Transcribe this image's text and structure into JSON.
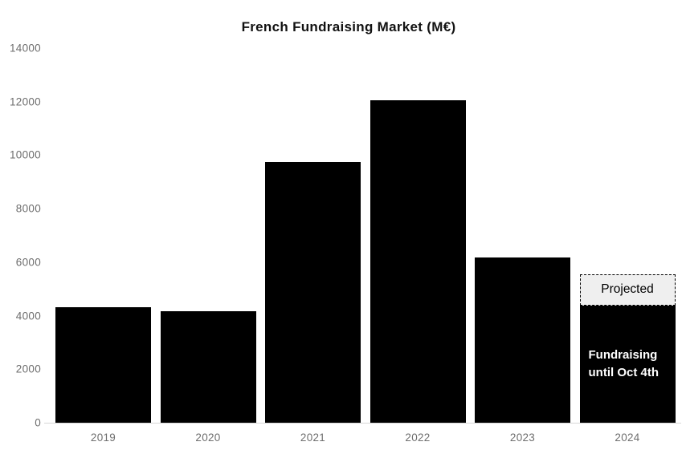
{
  "page": {
    "background": "#ffffff"
  },
  "chart_data": {
    "type": "bar",
    "title": "French Fundraising Market (M€)",
    "categories": [
      "2019",
      "2020",
      "2021",
      "2022",
      "2023",
      "2024"
    ],
    "values": [
      4320,
      4180,
      9730,
      12040,
      6180,
      4380
    ],
    "series": [
      {
        "name": "Fundraising",
        "values": [
          4320,
          4180,
          9730,
          12040,
          6180,
          4380
        ]
      },
      {
        "name": "Projected additional (2024)",
        "values": [
          0,
          0,
          0,
          0,
          0,
          1180
        ]
      }
    ],
    "projected_segment": {
      "category": "2024",
      "from": 4380,
      "to": 5560,
      "label": "Projected"
    },
    "annotations": [
      {
        "text": "Fundraising until Oct 4th",
        "target_category": "2024",
        "color": "#ffffff"
      }
    ],
    "xlabel": "",
    "ylabel": "",
    "ylim": [
      0,
      14000
    ],
    "yticks": [
      0,
      2000,
      4000,
      6000,
      8000,
      10000,
      12000,
      14000
    ],
    "grid": false,
    "legend": "none",
    "colors": {
      "bar": "#000000",
      "title": "#121212",
      "tick_label": "#6e6e6e",
      "baseline": "#d6d6d6",
      "projected_fill": "#efefef",
      "projected_border": "#000000",
      "annotation_text": "#ffffff"
    }
  }
}
